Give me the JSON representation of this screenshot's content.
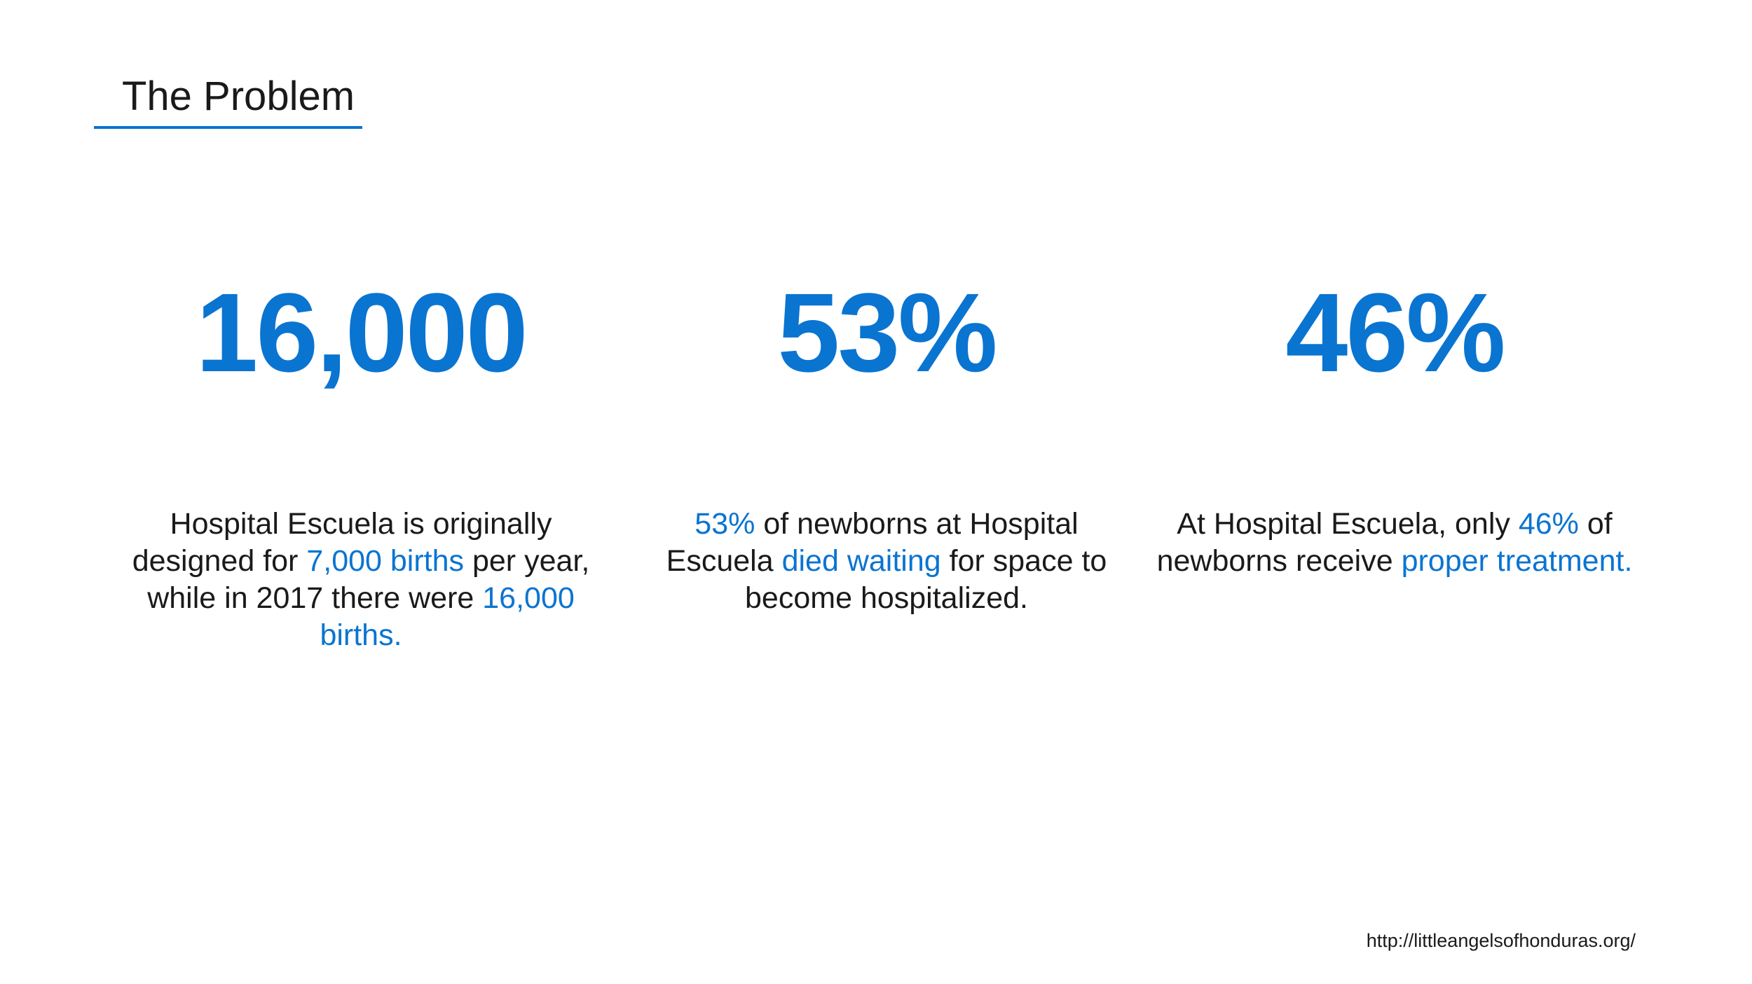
{
  "slide": {
    "title": "The Problem",
    "source": "http://littleangelsofhonduras.org/"
  },
  "colors": {
    "accent": "#0a74d1",
    "text": "#1a1a1a",
    "background": "#ffffff"
  },
  "stats": [
    {
      "value": "16,000",
      "desc": {
        "t1": "Hospital Escuela is originally designed for ",
        "h1": "7,000 births",
        "t2": " per year, while in 2017 there were ",
        "h2": "16,000 births."
      }
    },
    {
      "value": "53%",
      "desc": {
        "h1": "53%",
        "t1": " of newborns at Hospital Escuela ",
        "h2": "died waiting",
        "t2": " for space to become hospitalized."
      }
    },
    {
      "value": "46%",
      "desc": {
        "t1": "At Hospital Escuela, only ",
        "h1": "46%",
        "t2": " of newborns receive ",
        "h2": "proper treatment."
      }
    }
  ]
}
